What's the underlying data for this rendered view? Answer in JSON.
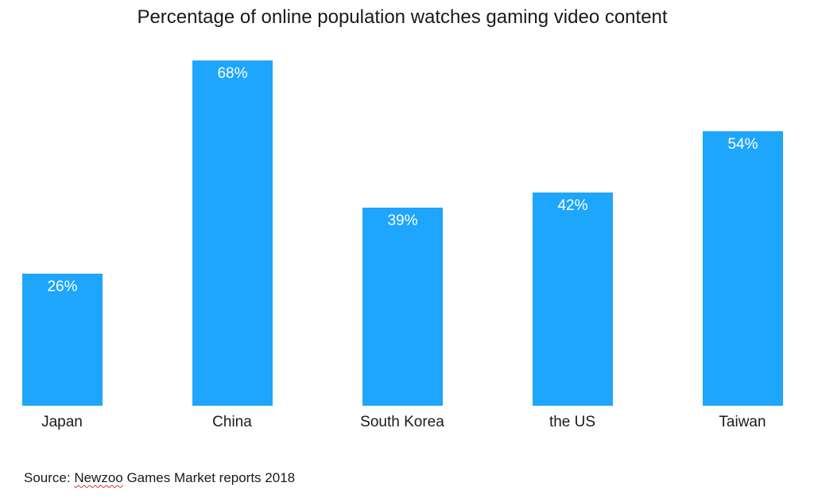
{
  "chart_data": {
    "type": "bar",
    "title": "Percentage of online population watches gaming video content",
    "categories": [
      "Japan",
      "China",
      "South Korea",
      "the US",
      "Taiwan"
    ],
    "values": [
      26,
      68,
      39,
      42,
      54
    ],
    "value_labels": [
      "26%",
      "68%",
      "39%",
      "42%",
      "54%"
    ],
    "xlabel": "",
    "ylabel": "",
    "ylim": [
      0,
      68
    ],
    "grid": false,
    "legend": null,
    "bar_color": "#1ea5fc",
    "source": "Source: Newzoo Games Market reports 2018"
  },
  "source": {
    "prefix": "Source: ",
    "brand": "Newzoo",
    "suffix": " Games Market reports 2018"
  }
}
